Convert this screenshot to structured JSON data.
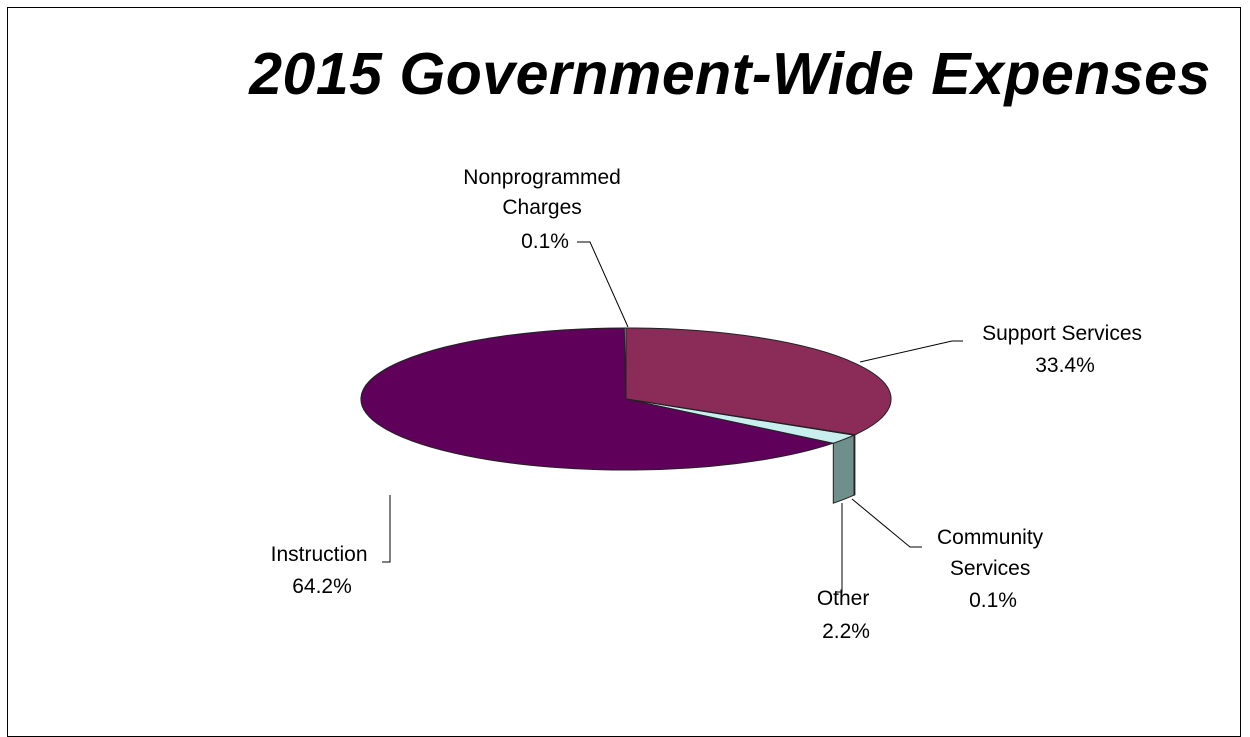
{
  "chart_data": {
    "type": "pie",
    "title": "2015 Government-Wide Expenses",
    "slices": [
      {
        "label": "Support Services",
        "value": 33.4,
        "value_label": "33.4%",
        "color": "#8B2C58"
      },
      {
        "label": "Community Services",
        "value": 0.1,
        "value_label": "0.1%",
        "color": "#C8EEF0"
      },
      {
        "label": "Other",
        "value": 2.2,
        "value_label": "2.2%",
        "color": "#C8EEF0"
      },
      {
        "label": "Instruction",
        "value": 64.2,
        "value_label": "64.2%",
        "color": "#5F005A"
      },
      {
        "label": "Nonprogrammed Charges",
        "value": 0.1,
        "value_label": "0.1%",
        "color": "#B0B0C0"
      }
    ],
    "style": "3d-pie",
    "legend": "none"
  }
}
